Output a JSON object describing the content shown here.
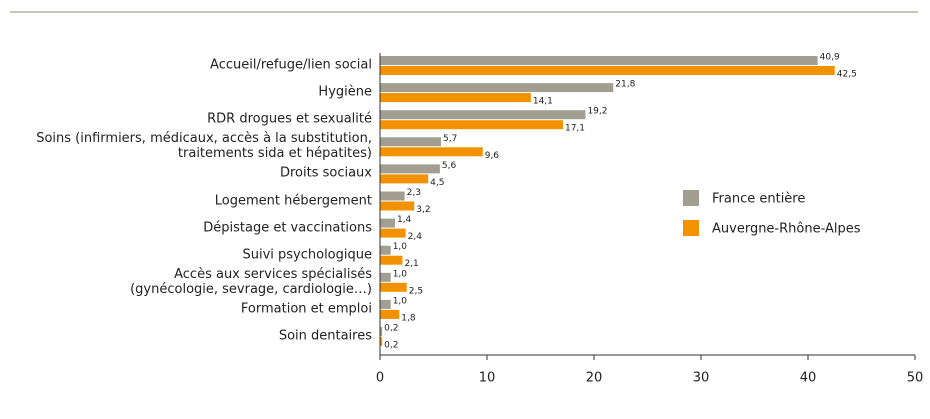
{
  "chart_data": {
    "type": "hbar",
    "categories": [
      "Accueil/refuge/lien social",
      "Hygiène",
      "RDR drogues et sexualité",
      "Soins (infirmiers, médicaux, accès à la substitution,\ntraitements sida et hépatites)",
      "Droits sociaux",
      "Logement hébergement",
      "Dépistage et vaccinations",
      "Suivi psychologique",
      "Accès aux services spécialisés\n(gynécologie, sevrage, cardiologie…)",
      "Formation et emploi",
      "Soin dentaires"
    ],
    "series": [
      {
        "name": "France entière",
        "color": "#a29f92",
        "values": [
          40.9,
          21.8,
          19.2,
          5.7,
          5.6,
          2.3,
          1.4,
          1.0,
          1.0,
          1.0,
          0.2
        ],
        "value_labels": [
          "40,9",
          "21,8",
          "19,2",
          "5,7",
          "5,6",
          "2,3",
          "1,4",
          "1,0",
          "1,0",
          "1,0",
          "0,2"
        ]
      },
      {
        "name": "Auvergne-Rhône-Alpes",
        "color": "#f39200",
        "values": [
          42.5,
          14.1,
          17.1,
          9.6,
          4.5,
          3.2,
          2.4,
          2.1,
          2.5,
          1.8,
          0.2
        ],
        "value_labels": [
          "42,5",
          "14,1",
          "17,1",
          "9,6",
          "4,5",
          "3,2",
          "2,4",
          "2,1",
          "2,5",
          "1,8",
          "0,2"
        ]
      }
    ],
    "xlim": [
      0,
      50
    ],
    "xticks": [
      0,
      10,
      20,
      30,
      40,
      50
    ],
    "legend": "right"
  }
}
